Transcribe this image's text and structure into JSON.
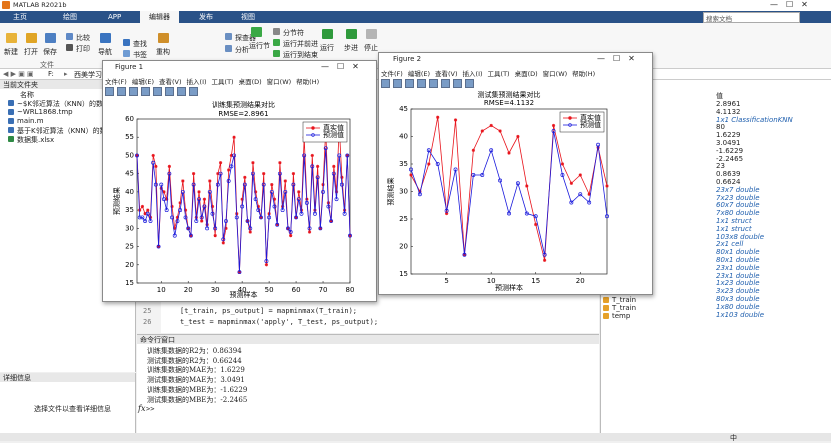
{
  "window_title": "MATLAB R2021b",
  "tabs": [
    "主页",
    "绘图",
    "APP",
    "编辑器",
    "发布",
    "视图"
  ],
  "search_placeholder": "搜索文档",
  "toolstrip": [
    "新建",
    "打开",
    "保存",
    "比较",
    "打印",
    "导航",
    "查找",
    "书签",
    "重构",
    "探查器",
    "分析",
    "运行节",
    "分节符",
    "运行并前进",
    "运行到结束",
    "运行",
    "步进",
    "停止"
  ],
  "toolstrip_section": "文件",
  "path_segments": [
    "F:",
    "西美学习资"
  ],
  "current_folder": {
    "title": "当前文件夹",
    "column": "名称",
    "files": [
      "~$K邻近算法（KNN）的数据回...",
      "~WRL1868.tmp",
      "main.m",
      "基于K邻近算法（KNN）的数据回...",
      "数据集.xlsx"
    ]
  },
  "details": {
    "title": "详细信息",
    "hint": "选择文件以查看详细信息"
  },
  "editor": {
    "line_numbers": [
      25,
      26
    ],
    "lines": [
      "[t_train, ps_output] = mapminmax(T_train);",
      "t_test = mapminmax('apply', T_test, ps_output);"
    ]
  },
  "command_window": {
    "title": "命令行窗口",
    "lines": [
      "训练集数据的R2为：0.86394",
      "测试集数据的R2为：0.66244",
      "训练集数据的MAE为：1.6229",
      "测试集数据的MAE为：3.0491",
      "训练集数据的MBE为：-1.6229",
      "测试集数据的MBE为：-2.2465"
    ],
    "fx": "fx",
    "prompt": ">>"
  },
  "workspace": {
    "value_header": "值",
    "values": [
      "2.8961",
      "4.1132",
      "1x1 ClassificationKNN",
      "80",
      "1.6229",
      "3.0491",
      "-1.6229",
      "-2.2465",
      "23",
      "0.8639",
      "0.6624",
      "23x7 double",
      "7x23 double",
      "60x7 double",
      "7x80 double",
      "1x1 struct",
      "1x1 struct",
      "103x8 double",
      "2x1 cell",
      "80x1 double",
      "80x1 double",
      "23x1 double",
      "23x1 double",
      "1x23 double",
      "3x23 double",
      "80x3 double",
      "1x80 double",
      "1x103 double"
    ],
    "visible_names": [
      "T_train",
      "T_train",
      "temp"
    ]
  },
  "ime": "中",
  "figure_windows": [
    {
      "title": "Figure 1"
    },
    {
      "title": "Figure 2"
    }
  ],
  "figure_menu": [
    "文件(F)",
    "编辑(E)",
    "查看(V)",
    "插入(I)",
    "工具(T)",
    "桌面(D)",
    "窗口(W)",
    "帮助(H)"
  ],
  "chart_data": [
    {
      "type": "line",
      "title": "训练集预测结果对比",
      "subtitle": "RMSE=2.8961",
      "x_label": "预测样本",
      "y_label": "预测结果",
      "x": [
        1,
        2,
        3,
        4,
        5,
        6,
        7,
        8,
        9,
        10,
        11,
        12,
        13,
        14,
        15,
        16,
        17,
        18,
        19,
        20,
        21,
        22,
        23,
        24,
        25,
        26,
        27,
        28,
        29,
        30,
        31,
        32,
        33,
        34,
        35,
        36,
        37,
        38,
        39,
        40,
        41,
        42,
        43,
        44,
        45,
        46,
        47,
        48,
        49,
        50,
        51,
        52,
        53,
        54,
        55,
        56,
        57,
        58,
        59,
        60,
        61,
        62,
        63,
        64,
        65,
        66,
        67,
        68,
        69,
        70,
        71,
        72,
        73,
        74,
        75,
        76,
        77,
        78,
        79,
        80
      ],
      "series": [
        {
          "name": "真实值",
          "color": "#e8141c",
          "marker": "star",
          "values": [
            50,
            35,
            36,
            34,
            35,
            33,
            50,
            47,
            25,
            41,
            40,
            38,
            47,
            36,
            30,
            33,
            37,
            43,
            35,
            30,
            28,
            45,
            33,
            40,
            32,
            38,
            31,
            43,
            36,
            28,
            45,
            48,
            26,
            30,
            46,
            50,
            55,
            34,
            18,
            38,
            44,
            32,
            29,
            48,
            40,
            36,
            33,
            45,
            20,
            34,
            42,
            38,
            31,
            48,
            36,
            43,
            30,
            28,
            45,
            33,
            40,
            35,
            55,
            38,
            29,
            50,
            35,
            47,
            30,
            42,
            57,
            37,
            32,
            47,
            40,
            58,
            44,
            35,
            50,
            28
          ]
        },
        {
          "name": "预测值",
          "color": "#1a1adc",
          "marker": "circle",
          "values": [
            50,
            33,
            33,
            32,
            34,
            32,
            48,
            42,
            25,
            42,
            38,
            35,
            45,
            33,
            28,
            32,
            35,
            40,
            33,
            30,
            28,
            42,
            32,
            38,
            33,
            36,
            30,
            40,
            34,
            30,
            42,
            45,
            27,
            32,
            43,
            47,
            50,
            33,
            18,
            36,
            42,
            32,
            30,
            45,
            38,
            35,
            33,
            42,
            21,
            33,
            40,
            36,
            31,
            45,
            35,
            40,
            30,
            29,
            42,
            33,
            38,
            34,
            50,
            37,
            30,
            47,
            34,
            44,
            30,
            40,
            52,
            36,
            32,
            45,
            38,
            50,
            42,
            34,
            50,
            28
          ]
        }
      ],
      "xlim": [
        1,
        80
      ],
      "xticks": [
        10,
        20,
        30,
        40,
        50,
        60,
        70,
        80
      ],
      "ylim": [
        15,
        60
      ],
      "yticks": [
        15,
        20,
        25,
        30,
        35,
        40,
        45,
        50,
        55,
        60
      ],
      "grid": false,
      "legend": "top-right"
    },
    {
      "type": "line",
      "title": "测试集预测结果对比",
      "subtitle": "RMSE=4.1132",
      "x_label": "预测样本",
      "y_label": "预测结果",
      "x": [
        1,
        2,
        3,
        4,
        5,
        6,
        7,
        8,
        9,
        10,
        11,
        12,
        13,
        14,
        15,
        16,
        17,
        18,
        19,
        20,
        21,
        22,
        23
      ],
      "series": [
        {
          "name": "真实值",
          "color": "#e8141c",
          "marker": "star",
          "values": [
            33,
            30,
            35,
            43.5,
            26,
            43,
            18.5,
            37.5,
            41,
            42,
            41,
            37,
            40,
            31,
            24,
            17.5,
            42,
            35,
            31.5,
            33,
            29.5,
            38,
            31
          ]
        },
        {
          "name": "预测值",
          "color": "#1a1adc",
          "marker": "circle",
          "values": [
            34,
            29.5,
            37.5,
            35,
            26.5,
            34,
            18.5,
            33,
            33,
            37.5,
            32,
            26,
            31.5,
            26,
            25.5,
            18.5,
            41,
            33,
            28,
            29.5,
            28,
            38.5,
            25.5
          ]
        }
      ],
      "xlim": [
        1,
        23
      ],
      "xticks": [
        5,
        10,
        15,
        20
      ],
      "ylim": [
        15,
        45
      ],
      "yticks": [
        15,
        20,
        25,
        30,
        35,
        40,
        45
      ],
      "grid": false,
      "legend": "top-right"
    }
  ]
}
